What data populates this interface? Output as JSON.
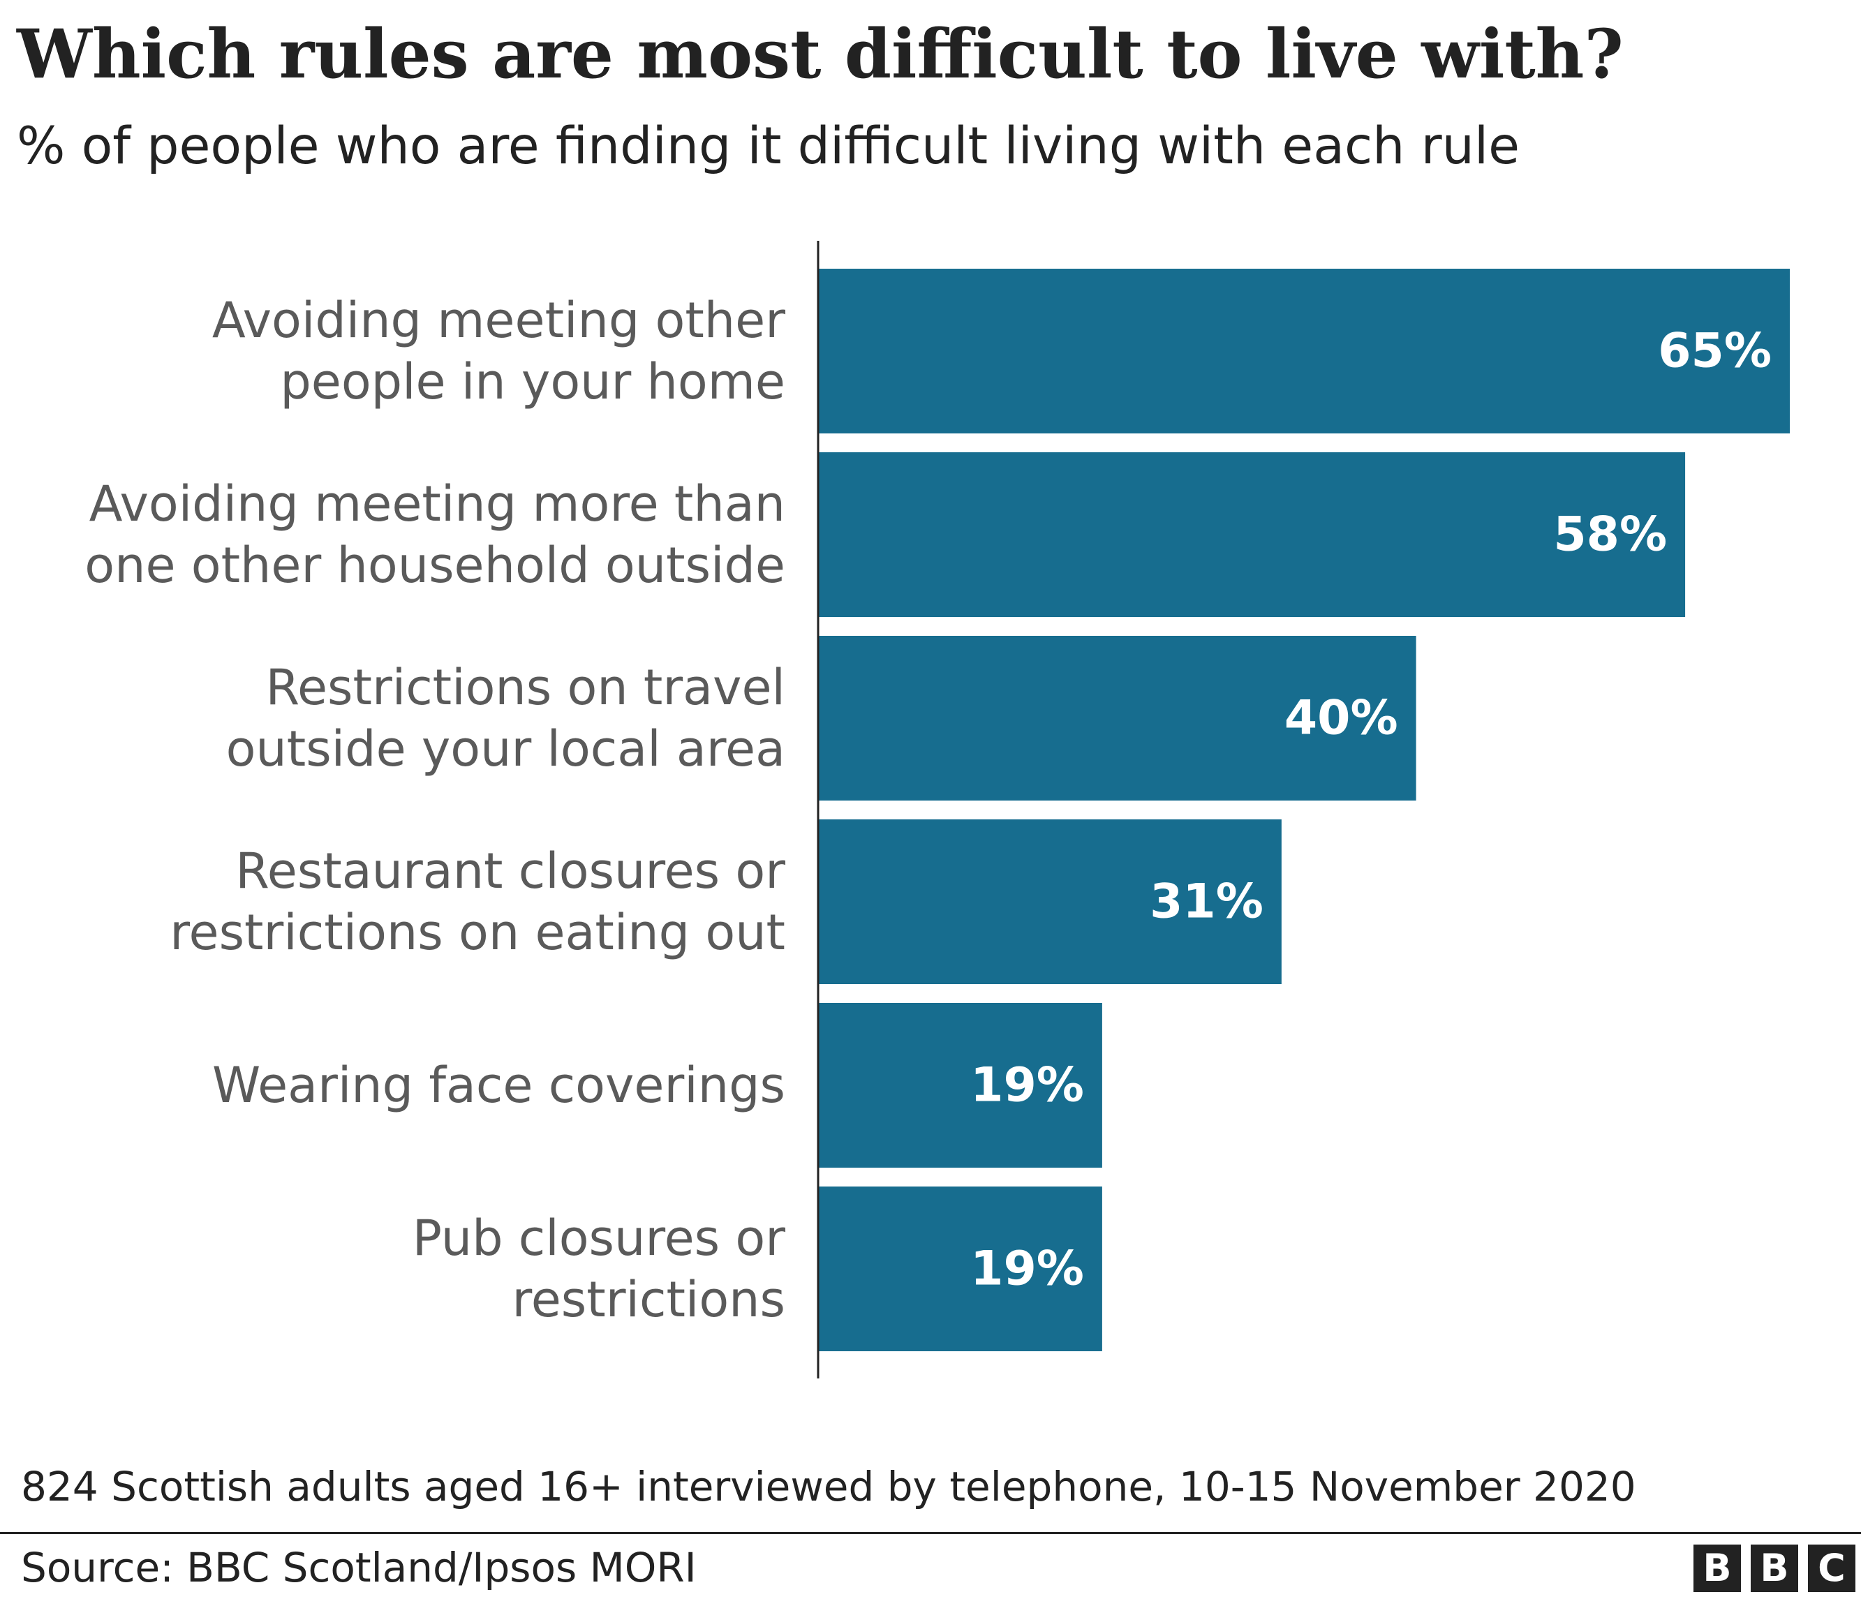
{
  "header": {
    "title": "Which rules are most difficult to live with?",
    "subtitle": "% of people who are finding it difficult living with each rule"
  },
  "chart_data": {
    "type": "bar",
    "orientation": "horizontal",
    "categories": [
      [
        "Avoiding meeting other",
        "people in your home"
      ],
      [
        "Avoiding meeting more than",
        "one other household outside"
      ],
      [
        "Restrictions on travel",
        "outside your local area"
      ],
      [
        "Restaurant closures or",
        "restrictions on eating out"
      ],
      [
        "Wearing face coverings"
      ],
      [
        "Pub closures or",
        "restrictions"
      ]
    ],
    "values": [
      65,
      58,
      40,
      31,
      19,
      19
    ],
    "value_labels": [
      "65%",
      "58%",
      "40%",
      "31%",
      "19%",
      "19%"
    ],
    "title": "Which rules are most difficult to live with?",
    "subtitle": "% of people who are finding it difficult living with each rule",
    "xlim": [
      0,
      65
    ],
    "grid": false,
    "bar_color": "#176d8f"
  },
  "footer": {
    "note": "824 Scottish adults aged 16+ interviewed by telephone, 10-15 November 2020",
    "source": "Source: BBC Scotland/Ipsos MORI",
    "logo_letters": [
      "B",
      "B",
      "C"
    ]
  },
  "colors": {
    "bar": "#176d8f",
    "text": "#222222",
    "category_text": "#5a5a5a",
    "value_text": "#ffffff"
  }
}
